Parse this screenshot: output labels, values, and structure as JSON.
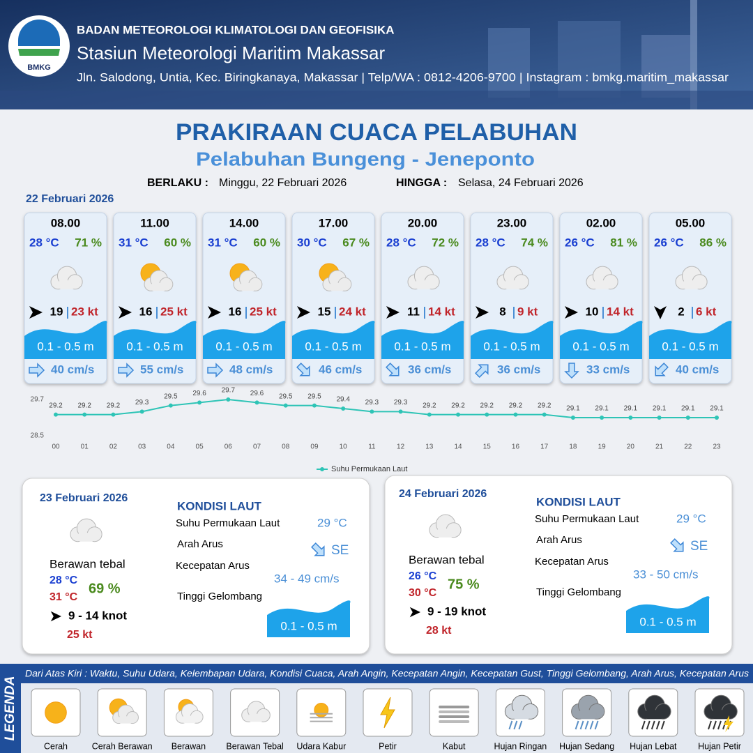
{
  "header": {
    "logo": "BMKG",
    "org": "BADAN METEOROLOGI KLIMATOLOGI DAN GEOFISIKA",
    "station": "Stasiun Meteorologi Maritim Makassar",
    "address": "Jln. Salodong, Untia, Kec. Biringkanaya, Makassar | Telp/WA : 0812-4206-9700 | Instagram : bmkg.maritim_makassar"
  },
  "title": "PRAKIRAAN CUACA PELABUHAN",
  "subtitle": "Pelabuhan Bungeng - Jeneponto",
  "validity": {
    "from_label": "BERLAKU :",
    "from": "Minggu, 22 Februari 2026",
    "to_label": "HINGGA :",
    "to": "Selasa, 24 Februari 2026"
  },
  "day1": {
    "date": "22 Februari 2026",
    "slots": [
      {
        "time": "08.00",
        "temp": "28 °C",
        "humidity": "71 %",
        "wind": "19",
        "gust": "23 kt",
        "wave": "0.1 - 0.5 m",
        "current": "40 cm/s"
      },
      {
        "time": "11.00",
        "temp": "31 °C",
        "humidity": "60 %",
        "wind": "16",
        "gust": "25 kt",
        "wave": "0.1 - 0.5 m",
        "current": "55 cm/s"
      },
      {
        "time": "14.00",
        "temp": "31 °C",
        "humidity": "60 %",
        "wind": "16",
        "gust": "25 kt",
        "wave": "0.1 - 0.5 m",
        "current": "48 cm/s"
      },
      {
        "time": "17.00",
        "temp": "30 °C",
        "humidity": "67 %",
        "wind": "15",
        "gust": "24 kt",
        "wave": "0.1 - 0.5 m",
        "current": "46 cm/s"
      },
      {
        "time": "20.00",
        "temp": "28 °C",
        "humidity": "72 %",
        "wind": "11",
        "gust": "14 kt",
        "wave": "0.1 - 0.5 m",
        "current": "36 cm/s"
      },
      {
        "time": "23.00",
        "temp": "28 °C",
        "humidity": "74 %",
        "wind": "8",
        "gust": "9 kt",
        "wave": "0.1 - 0.5 m",
        "current": "36 cm/s"
      },
      {
        "time": "02.00",
        "temp": "26 °C",
        "humidity": "81 %",
        "wind": "10",
        "gust": "14 kt",
        "wave": "0.1 - 0.5 m",
        "current": "33 cm/s"
      },
      {
        "time": "05.00",
        "temp": "26 °C",
        "humidity": "86 %",
        "wind": "2",
        "gust": "6 kt",
        "wave": "0.1 - 0.5 m",
        "current": "40 cm/s"
      }
    ]
  },
  "chart_data": {
    "type": "line",
    "categories": [
      "00",
      "01",
      "02",
      "03",
      "04",
      "05",
      "06",
      "07",
      "08",
      "09",
      "10",
      "11",
      "12",
      "13",
      "14",
      "15",
      "16",
      "17",
      "18",
      "19",
      "20",
      "21",
      "22",
      "23"
    ],
    "series": [
      {
        "name": "Suhu Permukaan Laut",
        "color": "#2ec4b6",
        "values": [
          29.2,
          29.2,
          29.2,
          29.3,
          29.5,
          29.6,
          29.7,
          29.6,
          29.5,
          29.5,
          29.4,
          29.3,
          29.3,
          29.2,
          29.2,
          29.2,
          29.2,
          29.2,
          29.1,
          29.1,
          29.1,
          29.1,
          29.1,
          29.1
        ]
      }
    ],
    "ylim": [
      28.5,
      29.7
    ],
    "yticks": [
      28.5,
      29.7
    ],
    "legend": "bottom"
  },
  "day2": {
    "date": "23 Februari 2026",
    "condition": "Berawan tebal",
    "temp_min": "28 °C",
    "temp_max": "31 °C",
    "humidity": "69 %",
    "wind": "9  - 14 knot",
    "gust": "25 kt",
    "sea": {
      "heading": "KONDISI LAUT",
      "sst_label": "Suhu Permukaan Laut",
      "sst": "29 °C",
      "dir_label": "Arah Arus",
      "dir": "SE",
      "speed_label": "Kecepatan Arus",
      "speed": "34 - 49 cm/s",
      "wave_label": "Tinggi Gelombang",
      "wave": "0.1 - 0.5 m"
    }
  },
  "day3": {
    "date": "24 Februari 2026",
    "condition": "Berawan tebal",
    "temp_min": "26 °C",
    "temp_max": "30 °C",
    "humidity": "75 %",
    "wind": "9  - 19 knot",
    "gust": "28 kt",
    "sea": {
      "heading": "KONDISI LAUT",
      "sst_label": "Suhu Permukaan Laut",
      "sst": "29 °C",
      "dir_label": "Arah Arus",
      "dir": "SE",
      "speed_label": "Kecepatan Arus",
      "speed": "33 - 50 cm/s",
      "wave_label": "Tinggi Gelombang",
      "wave": "0.1 - 0.5 m"
    }
  },
  "legend": {
    "title": "LEGENDA",
    "description": "Dari Atas Kiri : Waktu, Suhu Udara, Kelembapan Udara, Kondisi Cuaca, Arah Angin, Kecepatan Angin, Kecepatan Gust, Tinggi Gelombang, Arah Arus, Kecepatan Arus",
    "items": [
      "Cerah",
      "Cerah Berawan",
      "Berawan",
      "Berawan Tebal",
      "Udara Kabur",
      "Petir",
      "Kabut",
      "Hujan Ringan",
      "Hujan Sedang",
      "Hujan Lebat",
      "Hujan Petir"
    ]
  }
}
